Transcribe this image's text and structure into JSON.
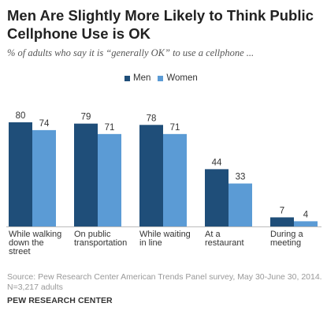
{
  "header": {
    "title_line1": "Men Are Slightly More Likely to Think Public",
    "title_line2": "Cellphone Use is OK",
    "subtitle": "% of adults who say it is “generally OK” to use a cellphone ..."
  },
  "chart_data": {
    "type": "bar",
    "categories": [
      [
        "While walking",
        "down the",
        "street"
      ],
      [
        "On public",
        "transportation"
      ],
      [
        "While waiting",
        "in line"
      ],
      [
        "At a",
        "restaurant"
      ],
      [
        "During a",
        "meeting"
      ]
    ],
    "series": [
      {
        "name": "Men",
        "color": "#1f4e79",
        "values": [
          80,
          79,
          78,
          44,
          7
        ]
      },
      {
        "name": "Women",
        "color": "#5b9bd5",
        "values": [
          74,
          71,
          71,
          33,
          4
        ]
      }
    ],
    "ylim": [
      0,
      100
    ],
    "grid": false,
    "legend": "top-center"
  },
  "footer": {
    "source_line1": "Source: Pew Research Center American Trends Panel survey, May 30-June 30, 2014.",
    "source_line2": "N=3,217 adults",
    "org": "PEW RESEARCH CENTER"
  }
}
